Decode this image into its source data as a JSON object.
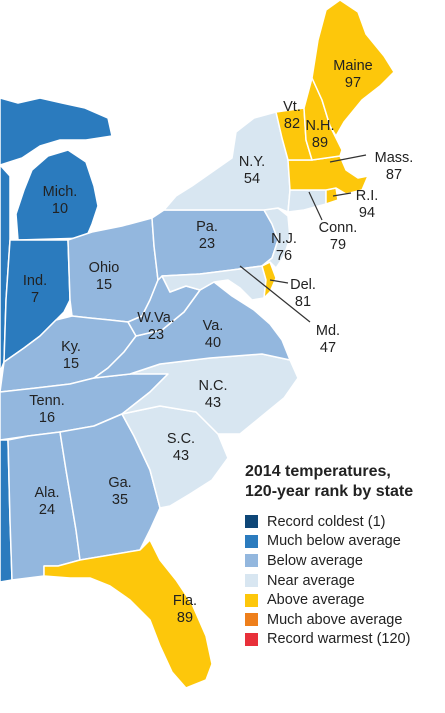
{
  "legend": {
    "title_line1": "2014 temperatures,",
    "title_line2": "120-year rank by state",
    "categories": [
      {
        "label": "Record coldest (1)",
        "color": "#0e4677"
      },
      {
        "label": "Much below average",
        "color": "#2b7bbe"
      },
      {
        "label": "Below average",
        "color": "#93b7de"
      },
      {
        "label": "Near average",
        "color": "#d8e6f1"
      },
      {
        "label": "Above average",
        "color": "#fdc70b"
      },
      {
        "label": "Much above average",
        "color": "#ee7f1b"
      },
      {
        "label": "Record warmest (120)",
        "color": "#e8303a"
      }
    ]
  },
  "states": [
    {
      "name": "Maine",
      "rank": "97",
      "category": "Above average"
    },
    {
      "name": "N.H.",
      "rank": "89",
      "category": "Above average"
    },
    {
      "name": "Vt.",
      "rank": "82",
      "category": "Above average"
    },
    {
      "name": "Mass.",
      "rank": "87",
      "category": "Above average"
    },
    {
      "name": "R.I.",
      "rank": "94",
      "category": "Above average"
    },
    {
      "name": "Conn.",
      "rank": "79",
      "category": "Near average"
    },
    {
      "name": "N.Y.",
      "rank": "54",
      "category": "Near average"
    },
    {
      "name": "N.J.",
      "rank": "76",
      "category": "Near average"
    },
    {
      "name": "Del.",
      "rank": "81",
      "category": "Above average"
    },
    {
      "name": "Md.",
      "rank": "47",
      "category": "Near average"
    },
    {
      "name": "Pa.",
      "rank": "23",
      "category": "Below average"
    },
    {
      "name": "Ohio",
      "rank": "15",
      "category": "Below average"
    },
    {
      "name": "Mich.",
      "rank": "10",
      "category": "Much below average"
    },
    {
      "name": "Ind.",
      "rank": "7",
      "category": "Much below average"
    },
    {
      "name": "W.Va.",
      "rank": "23",
      "category": "Below average"
    },
    {
      "name": "Va.",
      "rank": "40",
      "category": "Below average"
    },
    {
      "name": "Ky.",
      "rank": "15",
      "category": "Below average"
    },
    {
      "name": "Tenn.",
      "rank": "16",
      "category": "Below average"
    },
    {
      "name": "N.C.",
      "rank": "43",
      "category": "Near average"
    },
    {
      "name": "S.C.",
      "rank": "43",
      "category": "Near average"
    },
    {
      "name": "Ga.",
      "rank": "35",
      "category": "Below average"
    },
    {
      "name": "Ala.",
      "rank": "24",
      "category": "Below average"
    },
    {
      "name": "Fla.",
      "rank": "89",
      "category": "Above average"
    },
    {
      "name": "",
      "rank": "",
      "category": "Much below average"
    },
    {
      "name": "",
      "rank": "",
      "category": "Much below average"
    },
    {
      "name": "",
      "rank": "",
      "category": "Much below average"
    },
    {
      "name": "",
      "rank": "",
      "category": "Near average"
    }
  ]
}
